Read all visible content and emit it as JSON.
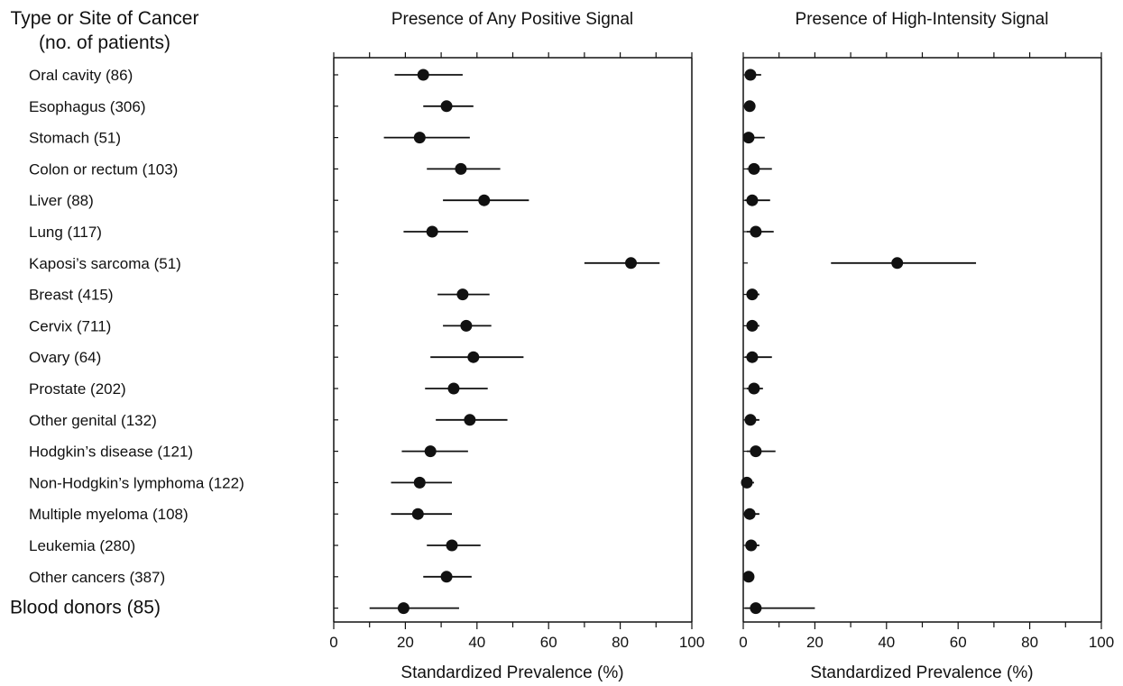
{
  "chart_data": [
    {
      "type": "scatter",
      "title": "Presence of Any Positive Signal",
      "xlabel": "Standardized Prevalence (%)",
      "ylabel": "Type or Site of Cancer (no. of patients)",
      "xlim": [
        0,
        100
      ],
      "x_ticks": [
        0,
        20,
        40,
        60,
        80,
        100
      ],
      "grid": false,
      "points": [
        {
          "label": "Oral cavity (86)",
          "value": 25,
          "low": 17,
          "high": 36
        },
        {
          "label": "Esophagus (306)",
          "value": 31.5,
          "low": 25,
          "high": 39
        },
        {
          "label": "Stomach (51)",
          "value": 24,
          "low": 14,
          "high": 38
        },
        {
          "label": "Colon or rectum (103)",
          "value": 35.5,
          "low": 26,
          "high": 46.5
        },
        {
          "label": "Liver (88)",
          "value": 42,
          "low": 30.5,
          "high": 54.5
        },
        {
          "label": "Lung (117)",
          "value": 27.5,
          "low": 19.5,
          "high": 37.5
        },
        {
          "label": "Kaposi’s sarcoma (51)",
          "value": 83,
          "low": 70,
          "high": 91
        },
        {
          "label": "Breast (415)",
          "value": 36,
          "low": 29,
          "high": 43.5
        },
        {
          "label": "Cervix (711)",
          "value": 37,
          "low": 30.5,
          "high": 44
        },
        {
          "label": "Ovary (64)",
          "value": 39,
          "low": 27,
          "high": 53
        },
        {
          "label": "Prostate (202)",
          "value": 33.5,
          "low": 25.5,
          "high": 43
        },
        {
          "label": "Other genital (132)",
          "value": 38,
          "low": 28.5,
          "high": 48.5
        },
        {
          "label": "Hodgkin’s disease (121)",
          "value": 27,
          "low": 19,
          "high": 37.5
        },
        {
          "label": "Non-Hodgkin’s lymphoma (122)",
          "value": 24,
          "low": 16,
          "high": 33
        },
        {
          "label": "Multiple myeloma (108)",
          "value": 23.5,
          "low": 16,
          "high": 33
        },
        {
          "label": "Leukemia (280)",
          "value": 33,
          "low": 26,
          "high": 41
        },
        {
          "label": "Other cancers (387)",
          "value": 31.5,
          "low": 25,
          "high": 38.5
        },
        {
          "label": "Blood donors (85)",
          "value": 19.5,
          "low": 10,
          "high": 35
        }
      ]
    },
    {
      "type": "scatter",
      "title": "Presence of High-Intensity Signal",
      "xlabel": "Standardized Prevalence (%)",
      "xlim": [
        0,
        100
      ],
      "x_ticks": [
        0,
        20,
        40,
        60,
        80,
        100
      ],
      "grid": false,
      "points": [
        {
          "label": "Oral cavity (86)",
          "value": 2,
          "low": 0.5,
          "high": 5
        },
        {
          "label": "Esophagus (306)",
          "value": 1.8,
          "low": 0.5,
          "high": 3
        },
        {
          "label": "Stomach (51)",
          "value": 1.5,
          "low": 0,
          "high": 6
        },
        {
          "label": "Colon or rectum (103)",
          "value": 3,
          "low": 1,
          "high": 8
        },
        {
          "label": "Liver (88)",
          "value": 2.5,
          "low": 0.5,
          "high": 7.5
        },
        {
          "label": "Lung (117)",
          "value": 3.5,
          "low": 1,
          "high": 8.5
        },
        {
          "label": "Kaposi’s sarcoma (51)",
          "value": 43,
          "low": 24.5,
          "high": 65
        },
        {
          "label": "Breast (415)",
          "value": 2.5,
          "low": 1,
          "high": 4.5
        },
        {
          "label": "Cervix (711)",
          "value": 2.5,
          "low": 1,
          "high": 4.5
        },
        {
          "label": "Ovary (64)",
          "value": 2.5,
          "low": 0.5,
          "high": 8
        },
        {
          "label": "Prostate (202)",
          "value": 3,
          "low": 1,
          "high": 5.5
        },
        {
          "label": "Other genital (132)",
          "value": 2,
          "low": 0.5,
          "high": 4.5
        },
        {
          "label": "Hodgkin’s disease (121)",
          "value": 3.5,
          "low": 1,
          "high": 9
        },
        {
          "label": "Non-Hodgkin’s lymphoma (122)",
          "value": 1,
          "low": 0,
          "high": 3
        },
        {
          "label": "Multiple myeloma (108)",
          "value": 1.8,
          "low": 0.5,
          "high": 4.5
        },
        {
          "label": "Leukemia (280)",
          "value": 2.2,
          "low": 0.8,
          "high": 4.5
        },
        {
          "label": "Other cancers (387)",
          "value": 1.5,
          "low": 0.5,
          "high": 2.5
        },
        {
          "label": "Blood donors (85)",
          "value": 3.5,
          "low": 0.5,
          "high": 20
        }
      ]
    }
  ],
  "legend_header": {
    "line1": "Type or Site of Cancer",
    "line2": "(no. of patients)"
  }
}
